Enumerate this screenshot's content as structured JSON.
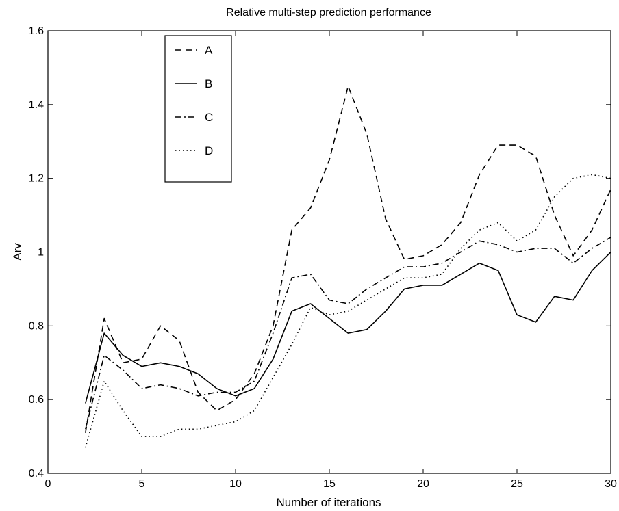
{
  "chart_data": {
    "type": "line",
    "title": "Relative multi-step prediction performance",
    "xlabel": "Number of iterations",
    "ylabel": "Arv",
    "xlim": [
      0,
      30
    ],
    "ylim": [
      0.4,
      1.6
    ],
    "xticks": [
      0,
      5,
      10,
      15,
      20,
      25,
      30
    ],
    "yticks": [
      0.4,
      0.6,
      0.8,
      1,
      1.2,
      1.4,
      1.6
    ],
    "xtick_labels": [
      "0",
      "5",
      "10",
      "15",
      "20",
      "25",
      "30"
    ],
    "ytick_labels": [
      "0.4",
      "0.6",
      "0.8",
      "1",
      "1.2",
      "1.4",
      "1.6"
    ],
    "grid": false,
    "legend_position": "top-left",
    "x": [
      2,
      3,
      4,
      5,
      6,
      7,
      8,
      9,
      10,
      11,
      12,
      13,
      14,
      15,
      16,
      17,
      18,
      19,
      20,
      21,
      22,
      23,
      24,
      25,
      26,
      27,
      28,
      29,
      30
    ],
    "series": [
      {
        "name": "A",
        "style": "dashed",
        "values": [
          0.51,
          0.82,
          0.7,
          0.71,
          0.8,
          0.76,
          0.62,
          0.57,
          0.6,
          0.67,
          0.8,
          1.06,
          1.12,
          1.25,
          1.45,
          1.32,
          1.09,
          0.98,
          0.99,
          1.02,
          1.08,
          1.21,
          1.29,
          1.29,
          1.26,
          1.1,
          0.99,
          1.06,
          1.17
        ]
      },
      {
        "name": "B",
        "style": "solid",
        "values": [
          0.59,
          0.78,
          0.72,
          0.69,
          0.7,
          0.69,
          0.67,
          0.63,
          0.61,
          0.63,
          0.71,
          0.84,
          0.86,
          0.82,
          0.78,
          0.79,
          0.84,
          0.9,
          0.91,
          0.91,
          0.94,
          0.97,
          0.95,
          0.83,
          0.81,
          0.88,
          0.87,
          0.95,
          1.0
        ]
      },
      {
        "name": "C",
        "style": "dashdot",
        "values": [
          0.52,
          0.72,
          0.68,
          0.63,
          0.64,
          0.63,
          0.61,
          0.62,
          0.62,
          0.65,
          0.78,
          0.93,
          0.94,
          0.87,
          0.86,
          0.9,
          0.93,
          0.96,
          0.96,
          0.97,
          1.0,
          1.03,
          1.02,
          1.0,
          1.01,
          1.01,
          0.97,
          1.01,
          1.04
        ]
      },
      {
        "name": "D",
        "style": "dotted",
        "values": [
          0.47,
          0.65,
          0.57,
          0.5,
          0.5,
          0.52,
          0.52,
          0.53,
          0.54,
          0.57,
          0.66,
          0.75,
          0.85,
          0.83,
          0.84,
          0.87,
          0.9,
          0.93,
          0.93,
          0.94,
          1.01,
          1.06,
          1.08,
          1.03,
          1.06,
          1.15,
          1.2,
          1.21,
          1.2
        ]
      }
    ]
  }
}
